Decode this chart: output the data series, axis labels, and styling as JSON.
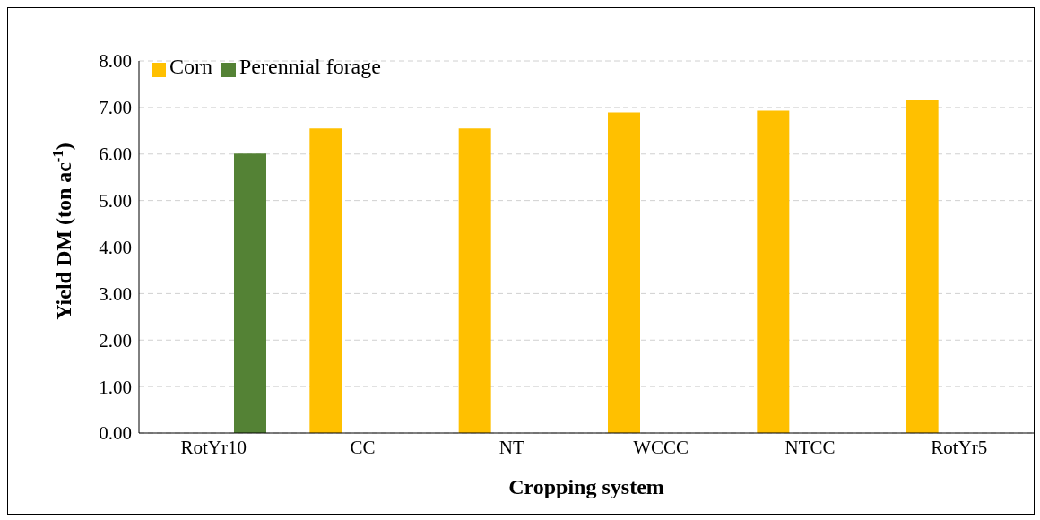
{
  "chart_data": {
    "type": "bar",
    "xlabel": "Cropping system",
    "ylabel": "Yield DM (ton ac$^{-1}$)",
    "categories": [
      "RotYr10",
      "CC",
      "NT",
      "WCCC",
      "NTCC",
      "RotYr5"
    ],
    "series": [
      {
        "name": "Corn",
        "color": "#ffc000",
        "values": [
          null,
          6.55,
          6.55,
          6.89,
          6.93,
          7.15
        ]
      },
      {
        "name": "Perennial forage",
        "color": "#548235",
        "values": [
          6.01,
          null,
          null,
          null,
          null,
          null
        ]
      }
    ],
    "ylim": [
      0,
      8
    ],
    "yticks": [
      {
        "value": 0,
        "label": "0.00"
      },
      {
        "value": 1,
        "label": "1.00"
      },
      {
        "value": 2,
        "label": "2.00"
      },
      {
        "value": 3,
        "label": "3.00"
      },
      {
        "value": 4,
        "label": "4.00"
      },
      {
        "value": 5,
        "label": "5.00"
      },
      {
        "value": 6,
        "label": "6.00"
      },
      {
        "value": 7,
        "label": "7.00"
      },
      {
        "value": 8,
        "label": "8.00"
      }
    ],
    "grid": "y",
    "legend": "top left"
  }
}
